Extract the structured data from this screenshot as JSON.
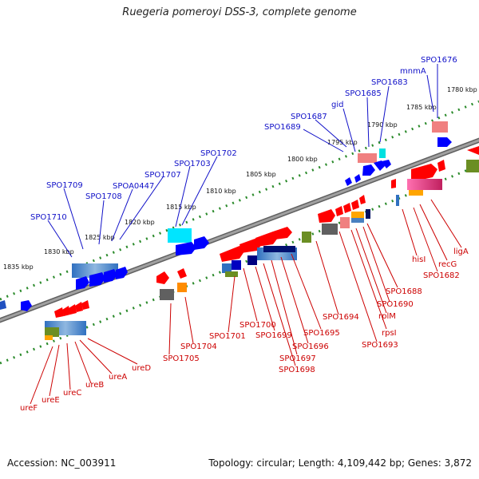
{
  "title": "Ruegeria pomeroyi DSS-3, complete genome",
  "footer": {
    "accession": "Accession: NC_003911",
    "summary": "Topology: circular; Length: 4,109,442 bp; Genes: 3,872"
  },
  "scale_labels": [
    "1780 kbp",
    "1785 kbp",
    "1790 kbp",
    "1795 kbp",
    "1800 kbp",
    "1805 kbp",
    "1810 kbp",
    "1815 kbp",
    "1820 kbp",
    "1825 kbp",
    "1830 kbp",
    "1835 kbp"
  ],
  "forward_gene_labels": [
    "SPO1676",
    "mnmA",
    "SPO1683",
    "SPO1685",
    "gid",
    "SPO1687",
    "SPO1689",
    "SPO1702",
    "SPO1703",
    "SPO1707",
    "SPOA0447",
    "SPO1708",
    "SPO1709",
    "SPO1710"
  ],
  "reverse_gene_labels": [
    "ligA",
    "recG",
    "SPO1682",
    "hisI",
    "SPO1688",
    "SPO1690",
    "rplM",
    "rpsI",
    "SPO1693",
    "SPO1694",
    "SPO1695",
    "SPO1696",
    "SPO1697",
    "SPO1698",
    "SPO1699",
    "SPO1700",
    "SPO1701",
    "SPO1704",
    "SPO1705",
    "ureD",
    "ureA",
    "ureB",
    "ureC",
    "ureE",
    "ureF"
  ],
  "colors": {
    "forward_label": "#1010c8",
    "reverse_label": "#cc0000",
    "backbone": "#808080",
    "gc_ticks": "#2a8a2a",
    "forward_cds": "#0000ff",
    "reverse_cds": "#ff0000"
  }
}
